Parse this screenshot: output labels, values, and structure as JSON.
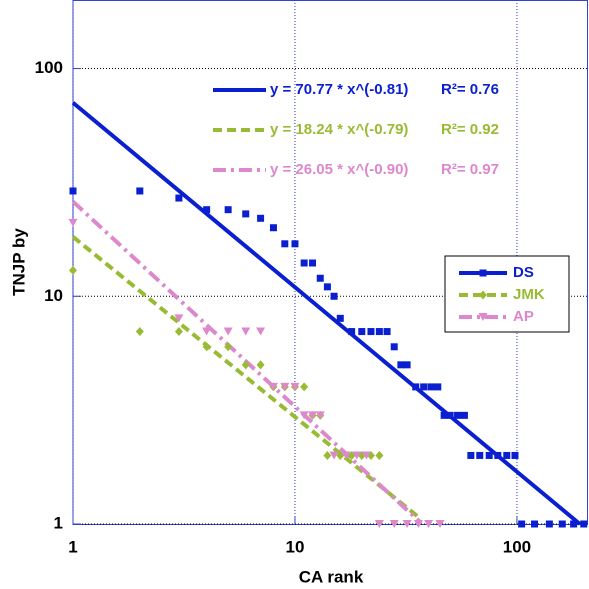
{
  "chart_data": {
    "type": "scatter",
    "x_label": "CA rank",
    "y_label": "TNJP  by",
    "xlog": true,
    "ylog": true,
    "xlim": [
      1,
      209
    ],
    "ylim": [
      1,
      200
    ],
    "xticks": [
      1,
      10,
      100
    ],
    "yticks": [
      1,
      10,
      100
    ],
    "grid": true,
    "legend": "right",
    "series": [
      {
        "name": "DS",
        "color": "#0a1fd0",
        "marker": "square",
        "x": [
          1,
          2,
          3,
          4,
          5,
          6,
          7,
          8,
          9,
          10,
          11,
          12,
          13,
          14,
          15,
          16,
          18,
          20,
          22,
          24,
          26,
          28,
          30,
          32,
          35,
          38,
          41,
          44,
          47,
          50,
          54,
          58,
          62,
          68,
          75,
          82,
          90,
          98,
          105,
          120,
          140,
          160,
          180,
          200
        ],
        "values": [
          29,
          29,
          27,
          24,
          24,
          23,
          22,
          20,
          17,
          17,
          14,
          14,
          12,
          11,
          10,
          8,
          7,
          7,
          7,
          7,
          7,
          6,
          5,
          5,
          4,
          4,
          4,
          4,
          3,
          3,
          3,
          3,
          2,
          2,
          2,
          2,
          2,
          2,
          1,
          1,
          1,
          1,
          1,
          1
        ]
      },
      {
        "name": "JMK",
        "color": "#99bb33",
        "marker": "diamond",
        "x": [
          1,
          2,
          3,
          4,
          5,
          6,
          7,
          8,
          9,
          10,
          11,
          12,
          13,
          14,
          16,
          18,
          20,
          22,
          24
        ],
        "values": [
          13,
          7,
          7,
          6,
          6,
          5,
          5,
          4,
          4,
          4,
          4,
          3,
          3,
          2,
          2,
          2,
          2,
          2,
          2
        ]
      },
      {
        "name": "AP",
        "color": "#dd88cc",
        "marker": "triangle",
        "x": [
          1,
          3,
          4,
          5,
          6,
          7,
          8,
          9,
          10,
          11,
          12,
          13,
          15,
          17,
          19,
          21,
          24,
          28,
          32,
          36,
          40,
          45
        ],
        "values": [
          21,
          8,
          7,
          7,
          7,
          7,
          4,
          4,
          4,
          3,
          3,
          3,
          2,
          2,
          2,
          2,
          1,
          1,
          1,
          1,
          1,
          1
        ]
      }
    ],
    "fits": [
      {
        "color": "#0a1fd0",
        "dash": "solid",
        "equation": "y = 70.77 * x^(-0.81)",
        "annotation": "R²= 0.76",
        "x": [
          1,
          192
        ],
        "values": [
          70.77,
          1
        ]
      },
      {
        "color": "#99bb33",
        "dash": "dashed",
        "equation": "y = 18.24 * x^(-0.79)",
        "annotation": "R²= 0.92",
        "x": [
          1,
          37
        ],
        "values": [
          18.24,
          1.05
        ]
      },
      {
        "color": "#dd88cc",
        "dash": "dashdot",
        "equation": "y = 26.05 * x^(-0.90)",
        "annotation": "R²= 0.97",
        "x": [
          1,
          37
        ],
        "values": [
          26.05,
          1.01
        ]
      }
    ]
  }
}
